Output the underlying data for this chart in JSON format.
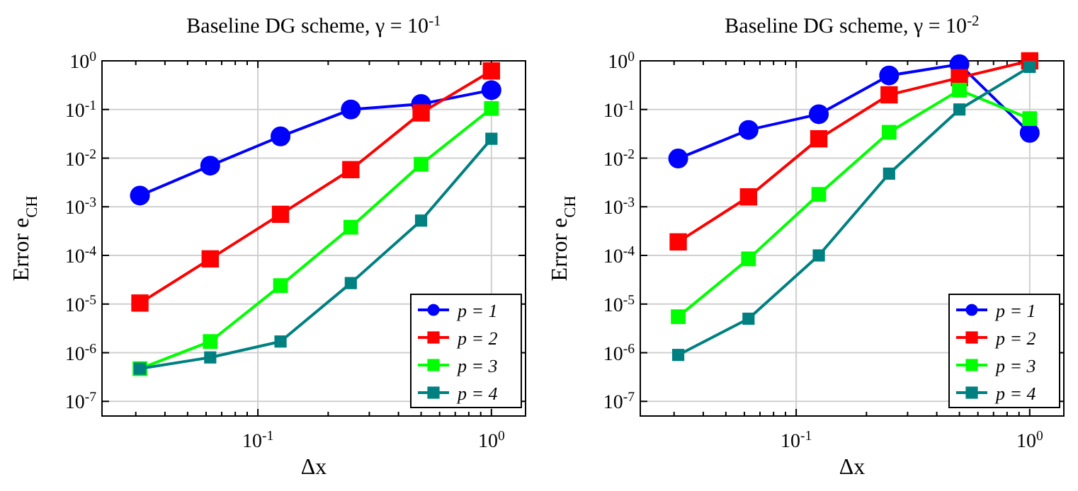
{
  "chart_data": [
    {
      "type": "line",
      "title": "Baseline DG scheme, γ = 10$^{-1}$",
      "xlabel": "Δx",
      "ylabel": "Error e$_{CH}$",
      "log": "xy",
      "grid": true,
      "legend": "bottom right",
      "xlim": [
        0.0215,
        1.4
      ],
      "ylim": [
        5e-08,
        1
      ],
      "xticks": [
        {
          "value": 0.03,
          "label": null
        },
        {
          "value": 0.04,
          "label": null
        },
        {
          "value": 0.05,
          "label": null
        },
        {
          "value": 0.06,
          "label": null
        },
        {
          "value": 0.07,
          "label": null
        },
        {
          "value": 0.08,
          "label": null
        },
        {
          "value": 0.09,
          "label": null
        },
        {
          "value": 0.1,
          "label": "10$^{-1}$"
        },
        {
          "value": 0.2,
          "label": null
        },
        {
          "value": 0.3,
          "label": null
        },
        {
          "value": 0.4,
          "label": null
        },
        {
          "value": 0.5,
          "label": null
        },
        {
          "value": 0.6,
          "label": null
        },
        {
          "value": 0.7,
          "label": null
        },
        {
          "value": 0.8,
          "label": null
        },
        {
          "value": 0.9,
          "label": null
        },
        {
          "value": 1,
          "label": "10$^{0}$"
        }
      ],
      "yticks": [
        {
          "value": 1e-07,
          "label": "10$^{-7}$"
        },
        {
          "value": 1e-06,
          "label": "10$^{-6}$"
        },
        {
          "value": 1e-05,
          "label": "10$^{-5}$"
        },
        {
          "value": 0.0001,
          "label": "10$^{-4}$"
        },
        {
          "value": 0.001,
          "label": "10$^{-3}$"
        },
        {
          "value": 0.01,
          "label": "10$^{-2}$"
        },
        {
          "value": 0.1,
          "label": "10$^{-1}$"
        },
        {
          "value": 1,
          "label": "10$^{0}$"
        }
      ],
      "x": [
        0.03125,
        0.0625,
        0.125,
        0.25,
        0.5,
        1
      ],
      "series": [
        {
          "name": "p = 1",
          "color": "#0000ff",
          "marker": "circle",
          "values": [
            0.0017,
            0.007,
            0.028,
            0.1,
            0.13,
            0.25
          ]
        },
        {
          "name": "p = 2",
          "color": "#ff0000",
          "marker": "square",
          "values": [
            1.05e-05,
            8.5e-05,
            0.0007,
            0.0058,
            0.085,
            0.62
          ]
        },
        {
          "name": "p = 3",
          "color": "#00ff00",
          "marker": "square",
          "values": [
            4.7e-07,
            1.7e-06,
            2.4e-05,
            0.00038,
            0.0075,
            0.105
          ]
        },
        {
          "name": "p = 4",
          "color": "#008080",
          "marker": "square",
          "values": [
            4.7e-07,
            8e-07,
            1.7e-06,
            2.7e-05,
            0.00052,
            0.025
          ]
        }
      ]
    },
    {
      "type": "line",
      "title": "Baseline DG scheme, γ = 10$^{-2}$",
      "xlabel": "Δx",
      "ylabel": "Error e$_{CH}$",
      "log": "xy",
      "grid": true,
      "legend": "bottom right",
      "xlim": [
        0.0215,
        1.4
      ],
      "ylim": [
        5e-08,
        1
      ],
      "xticks": [
        {
          "value": 0.03,
          "label": null
        },
        {
          "value": 0.04,
          "label": null
        },
        {
          "value": 0.05,
          "label": null
        },
        {
          "value": 0.06,
          "label": null
        },
        {
          "value": 0.07,
          "label": null
        },
        {
          "value": 0.08,
          "label": null
        },
        {
          "value": 0.09,
          "label": null
        },
        {
          "value": 0.1,
          "label": "10$^{-1}$"
        },
        {
          "value": 0.2,
          "label": null
        },
        {
          "value": 0.3,
          "label": null
        },
        {
          "value": 0.4,
          "label": null
        },
        {
          "value": 0.5,
          "label": null
        },
        {
          "value": 0.6,
          "label": null
        },
        {
          "value": 0.7,
          "label": null
        },
        {
          "value": 0.8,
          "label": null
        },
        {
          "value": 0.9,
          "label": null
        },
        {
          "value": 1,
          "label": "10$^{0}$"
        }
      ],
      "yticks": [
        {
          "value": 1e-07,
          "label": "10$^{-7}$"
        },
        {
          "value": 1e-06,
          "label": "10$^{-6}$"
        },
        {
          "value": 1e-05,
          "label": "10$^{-5}$"
        },
        {
          "value": 0.0001,
          "label": "10$^{-4}$"
        },
        {
          "value": 0.001,
          "label": "10$^{-3}$"
        },
        {
          "value": 0.01,
          "label": "10$^{-2}$"
        },
        {
          "value": 0.1,
          "label": "10$^{-1}$"
        },
        {
          "value": 1,
          "label": "10$^{0}$"
        }
      ],
      "x": [
        0.03125,
        0.0625,
        0.125,
        0.25,
        0.5,
        1
      ],
      "series": [
        {
          "name": "p = 1",
          "color": "#0000ff",
          "marker": "circle",
          "values": [
            0.0098,
            0.038,
            0.08,
            0.5,
            0.85,
            0.033
          ]
        },
        {
          "name": "p = 2",
          "color": "#ff0000",
          "marker": "square",
          "values": [
            0.00019,
            0.0016,
            0.025,
            0.2,
            0.45,
            1.0
          ]
        },
        {
          "name": "p = 3",
          "color": "#00ff00",
          "marker": "square",
          "values": [
            5.5e-06,
            8.5e-05,
            0.0018,
            0.034,
            0.25,
            0.065
          ]
        },
        {
          "name": "p = 4",
          "color": "#008080",
          "marker": "square",
          "values": [
            9e-07,
            5e-06,
            0.0001,
            0.0048,
            0.1,
            0.75
          ]
        }
      ]
    }
  ]
}
